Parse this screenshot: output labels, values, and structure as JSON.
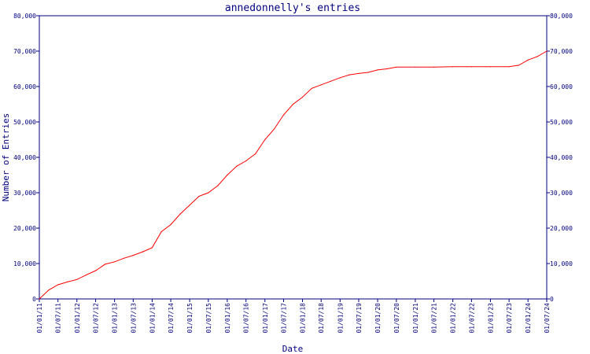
{
  "chart_data": {
    "type": "line",
    "title": "annedonnelly's entries",
    "xlabel": "Date",
    "ylabel": "Number of Entries",
    "x_tick_labels": [
      "01/01/11",
      "01/07/11",
      "01/01/12",
      "01/07/12",
      "01/01/13",
      "01/07/13",
      "01/01/14",
      "01/07/14",
      "01/01/15",
      "01/07/15",
      "01/01/16",
      "01/07/16",
      "01/01/17",
      "01/07/17",
      "01/01/18",
      "01/07/18",
      "01/01/19",
      "01/07/19",
      "01/01/20",
      "01/07/20",
      "01/01/21",
      "01/07/21",
      "01/01/22",
      "01/07/22",
      "01/01/23",
      "01/07/23",
      "01/01/24",
      "01/07/24"
    ],
    "y_tick_labels": [
      "0",
      "10,000",
      "20,000",
      "30,000",
      "40,000",
      "50,000",
      "60,000",
      "70,000",
      "80,000"
    ],
    "ylim": [
      0,
      80000
    ],
    "grid": false,
    "line_color": "#ff0000",
    "axis_color": "#000080",
    "series": [
      {
        "x": [
          "2011-01-01",
          "2011-04-01",
          "2011-07-01",
          "2011-10-01",
          "2012-01-01",
          "2012-04-01",
          "2012-07-01",
          "2012-10-01",
          "2013-01-01",
          "2013-04-01",
          "2013-07-01",
          "2013-10-01",
          "2014-01-01",
          "2014-04-01",
          "2014-07-01",
          "2014-10-01",
          "2015-01-01",
          "2015-04-01",
          "2015-07-01",
          "2015-10-01",
          "2016-01-01",
          "2016-04-01",
          "2016-07-01",
          "2016-10-01",
          "2017-01-01",
          "2017-04-01",
          "2017-07-01",
          "2017-10-01",
          "2018-01-01",
          "2018-04-01",
          "2018-07-01",
          "2018-10-01",
          "2019-01-01",
          "2019-04-01",
          "2019-07-01",
          "2019-10-01",
          "2020-01-01",
          "2020-04-01",
          "2020-07-01",
          "2021-01-01",
          "2021-07-01",
          "2022-01-01",
          "2022-07-01",
          "2023-01-01",
          "2023-07-01",
          "2023-10-01",
          "2024-01-01",
          "2024-04-01",
          "2024-07-01"
        ],
        "values": [
          0,
          2500,
          4000,
          4800,
          5500,
          6800,
          8000,
          9800,
          10500,
          11500,
          12300,
          13300,
          14500,
          19000,
          21000,
          24000,
          26500,
          29000,
          30000,
          32000,
          35000,
          37500,
          39000,
          41000,
          45000,
          48000,
          52000,
          55000,
          57000,
          59500,
          60500,
          61500,
          62500,
          63300,
          63700,
          64000,
          64700,
          65000,
          65500,
          65500,
          65500,
          65600,
          65600,
          65600,
          65600,
          66000,
          67500,
          68500,
          70000
        ]
      }
    ]
  }
}
